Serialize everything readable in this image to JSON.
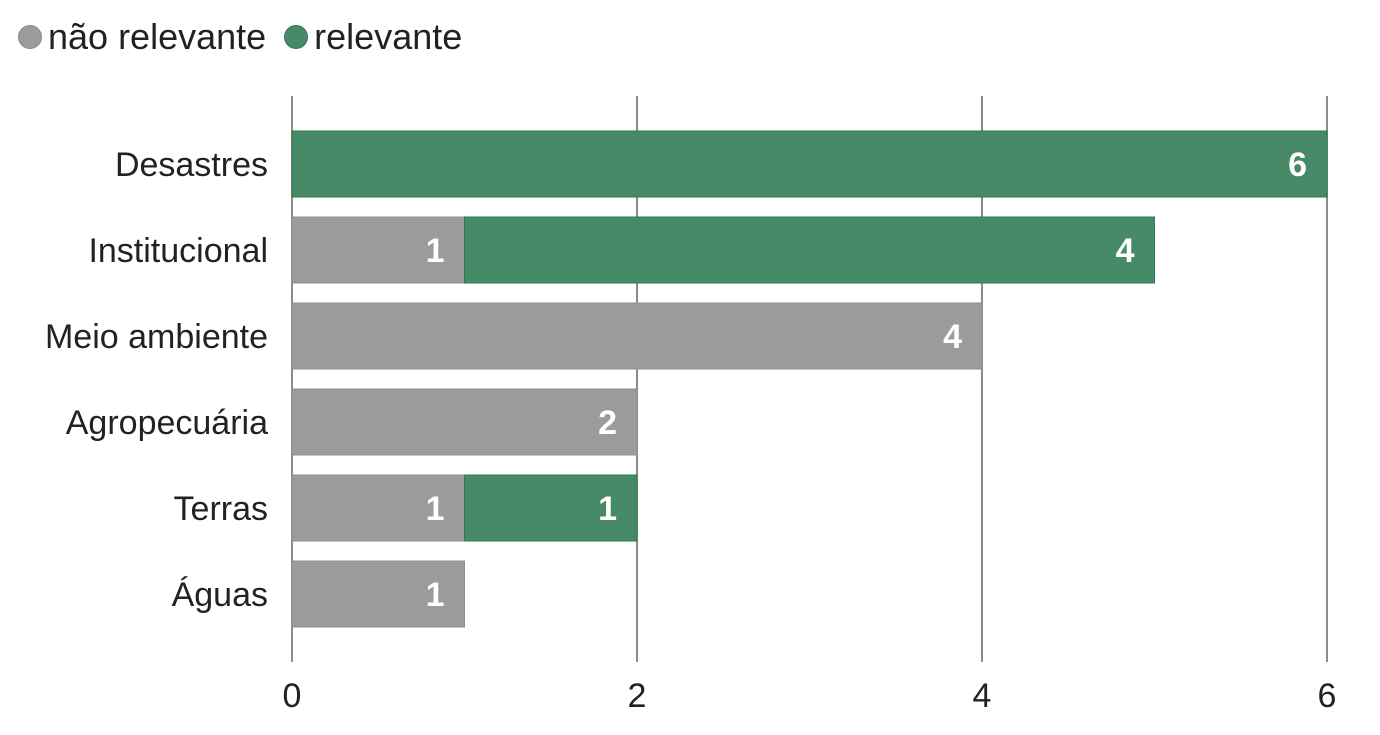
{
  "colors": {
    "nao_relevante": "#9b9b9b",
    "relevante": "#468a67",
    "relevante_border": "#2f7a52",
    "grid": "#8c8c8c",
    "text": "#222222",
    "data_label": "#ffffff"
  },
  "legend": {
    "items": [
      {
        "label": "não relevante",
        "color": "#9b9b9b"
      },
      {
        "label": "relevante",
        "color": "#468a67"
      }
    ]
  },
  "chart_data": {
    "type": "bar",
    "orientation": "horizontal",
    "stacked": true,
    "categories": [
      "Desastres",
      "Institucional",
      "Meio ambiente",
      "Agropecuária",
      "Terras",
      "Águas"
    ],
    "series": [
      {
        "name": "não relevante",
        "values": [
          0,
          1,
          4,
          2,
          1,
          1
        ]
      },
      {
        "name": "relevante",
        "values": [
          6,
          4,
          0,
          0,
          1,
          0
        ]
      }
    ],
    "xlim": [
      0,
      6
    ],
    "xticks": [
      0,
      2,
      4,
      6
    ],
    "xtick_labels": [
      "0",
      "2",
      "4",
      "6"
    ],
    "grid": true,
    "legend_position": "top-left",
    "data_labels": true
  }
}
